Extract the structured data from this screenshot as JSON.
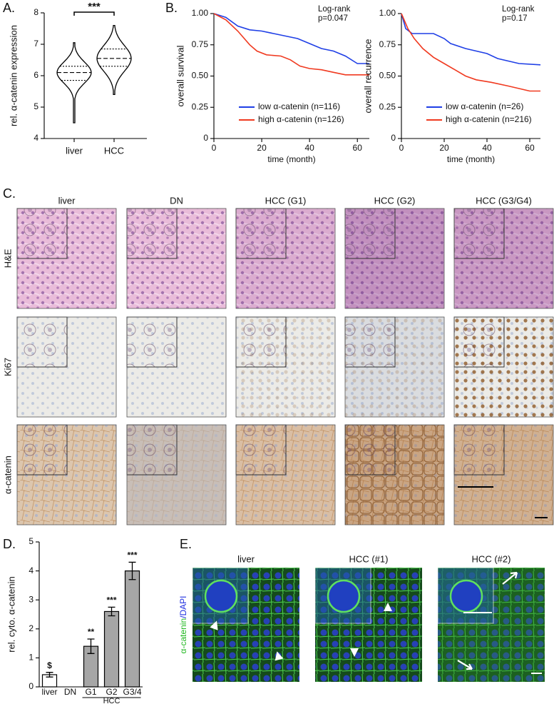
{
  "chart_data": [
    {
      "type": "violin",
      "ylabel": "rel. α-catenin expression",
      "categories": [
        "liver",
        "HCC"
      ],
      "stats": [
        {
          "min": 4.5,
          "q1": 5.85,
          "median": 6.1,
          "q3": 6.3,
          "max": 7.05
        },
        {
          "min": 5.4,
          "q1": 6.3,
          "median": 6.55,
          "q3": 6.85,
          "max": 7.6
        }
      ],
      "color": "#000000",
      "ylim": [
        4,
        8
      ],
      "yticks": [
        4,
        5,
        6,
        7,
        8
      ],
      "annotation": "***"
    },
    {
      "type": "line",
      "ylabel": "overall survival",
      "xlabel": "time (month)",
      "xlim": [
        0,
        65
      ],
      "xticks": [
        0,
        20,
        40,
        60
      ],
      "ylim": [
        0,
        1
      ],
      "yticks": [
        0,
        0.25,
        {
          "value": 0.5,
          "label": "0.50"
        },
        0.75,
        {
          "value": 1,
          "label": "1.00"
        }
      ],
      "annotation": [
        "Log-rank",
        "p=0.047"
      ],
      "series": [
        {
          "name": "low α-catenin (n=116)",
          "color": "#1f3fe6",
          "x": [
            0,
            5,
            10,
            15,
            20,
            25,
            30,
            35,
            40,
            45,
            50,
            55,
            60,
            65
          ],
          "values": [
            1.0,
            0.97,
            0.9,
            0.87,
            0.86,
            0.84,
            0.82,
            0.8,
            0.76,
            0.72,
            0.7,
            0.66,
            0.6,
            0.6
          ]
        },
        {
          "name": "high α-catenin (n=126)",
          "color": "#f03a20",
          "x": [
            0,
            5,
            10,
            15,
            18,
            22,
            28,
            32,
            36,
            40,
            45,
            50,
            55,
            65
          ],
          "values": [
            1.0,
            0.95,
            0.86,
            0.75,
            0.7,
            0.67,
            0.66,
            0.63,
            0.58,
            0.56,
            0.55,
            0.53,
            0.51,
            0.51
          ]
        }
      ]
    },
    {
      "type": "line",
      "ylabel": "overall recurrence",
      "xlabel": "time (month)",
      "xlim": [
        0,
        65
      ],
      "xticks": [
        0,
        20,
        40,
        60
      ],
      "ylim": [
        0,
        1
      ],
      "yticks": [
        0,
        0.25,
        {
          "value": 0.5,
          "label": "0.50"
        },
        0.75,
        {
          "value": 1,
          "label": "1.00"
        }
      ],
      "annotation": [
        "Log-rank",
        "p=0.17"
      ],
      "series": [
        {
          "name": "low α-catenin (n=26)",
          "color": "#1f3fe6",
          "x": [
            0,
            2,
            5,
            15,
            20,
            23,
            30,
            40,
            45,
            55,
            65
          ],
          "values": [
            1.0,
            0.88,
            0.84,
            0.84,
            0.8,
            0.76,
            0.72,
            0.68,
            0.64,
            0.6,
            0.59
          ]
        },
        {
          "name": "high α-catenin (n=216)",
          "color": "#f03a20",
          "x": [
            0,
            3,
            6,
            10,
            15,
            20,
            25,
            30,
            35,
            42,
            50,
            55,
            60,
            65
          ],
          "values": [
            1.0,
            0.88,
            0.8,
            0.72,
            0.65,
            0.6,
            0.55,
            0.5,
            0.47,
            0.45,
            0.42,
            0.4,
            0.38,
            0.38
          ]
        }
      ]
    },
    {
      "type": "bar",
      "ylabel": "rel. cyto. α-catenin",
      "categories": [
        "liver",
        "DN",
        "G1",
        "G2",
        "G3/4"
      ],
      "values": [
        0.42,
        null,
        1.4,
        2.6,
        4.0
      ],
      "errors": [
        0.08,
        null,
        0.25,
        0.15,
        0.3
      ],
      "colors": [
        "#ffffff",
        null,
        "#a6a6a6",
        "#a6a6a6",
        "#a6a6a6"
      ],
      "significance": [
        "$",
        null,
        "**",
        "***",
        "***"
      ],
      "group_label": "HCC",
      "ylim": [
        0,
        5
      ],
      "yticks": [
        0,
        1,
        2,
        3,
        4,
        5
      ]
    }
  ],
  "figure": {
    "panel_labels": [
      "A.",
      "B.",
      "C.",
      "D.",
      "E."
    ],
    "micrographs": {
      "columns": [
        "liver",
        "DN",
        "HCC (G1)",
        "HCC (G2)",
        "HCC (G3/G4)"
      ],
      "rows": [
        "H&E",
        "Ki67",
        "α-catenin"
      ]
    },
    "immunofluorescence": {
      "columns": [
        "liver",
        "HCC (#1)",
        "HCC (#2)"
      ],
      "stain": [
        "α-catenin",
        "/DAPI"
      ]
    }
  }
}
